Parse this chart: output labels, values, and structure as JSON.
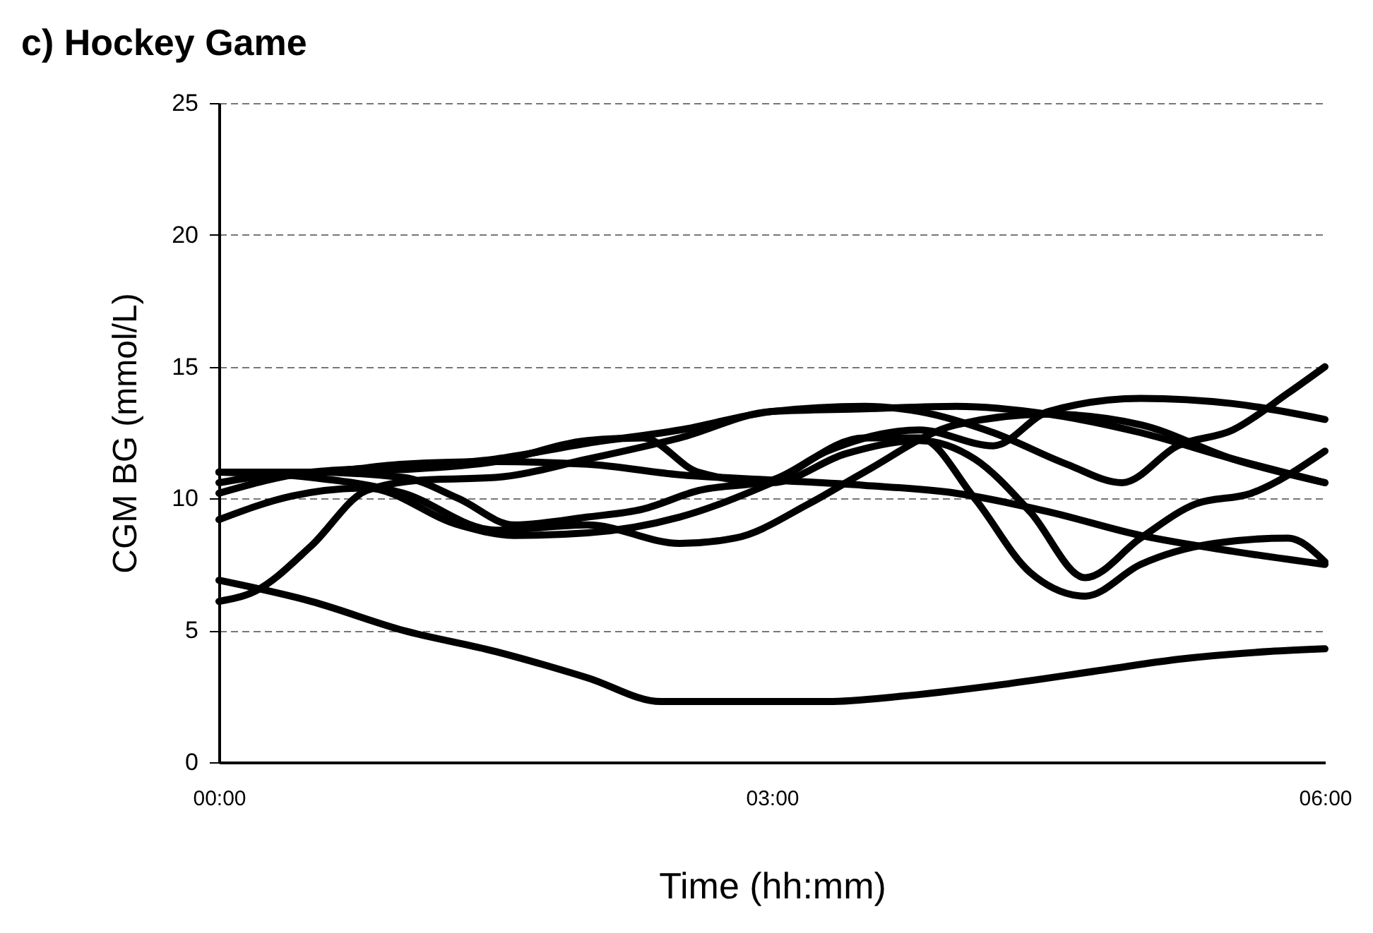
{
  "chart_data": {
    "type": "line",
    "title": "c) Hockey Game",
    "xlabel": "Time (hh:mm)",
    "ylabel": "CGM BG (mmol/L)",
    "xlim": [
      0,
      6
    ],
    "xticks": [
      {
        "value": 0,
        "label": "00:00"
      },
      {
        "value": 3,
        "label": "03:00"
      },
      {
        "value": 6,
        "label": "06:00"
      }
    ],
    "ylim": [
      0,
      25
    ],
    "yticks": [
      0,
      5,
      10,
      15,
      20,
      25
    ],
    "grid": "y",
    "series": [
      {
        "color": "#000000",
        "x": [
          0,
          0.5,
          1,
          1.5,
          2,
          2.4,
          3,
          3.3,
          3.7,
          4.2,
          4.8,
          5.2,
          5.7,
          6
        ],
        "values": [
          6.9,
          6.1,
          5.0,
          4.2,
          3.2,
          2.3,
          2.3,
          2.3,
          2.5,
          2.9,
          3.5,
          3.9,
          4.2,
          4.3
        ]
      },
      {
        "color": "#000000",
        "x": [
          0,
          0.2,
          0.5,
          0.8,
          1.1,
          1.5,
          2,
          2.5,
          3,
          3.5,
          4,
          4.5,
          5,
          5.5,
          6
        ],
        "values": [
          6.1,
          6.5,
          8.2,
          10.3,
          10.7,
          10.8,
          11.5,
          12.3,
          13.3,
          13.4,
          13.5,
          13.2,
          12.5,
          11.5,
          10.6
        ]
      },
      {
        "color": "#000000",
        "x": [
          0,
          0.5,
          1,
          1.5,
          2,
          2.5,
          3,
          3.5,
          4,
          4.5,
          5,
          5.5,
          6
        ],
        "values": [
          11.0,
          11.0,
          11.3,
          11.4,
          11.3,
          10.9,
          10.7,
          10.5,
          10.2,
          9.5,
          8.6,
          8.0,
          7.5
        ]
      },
      {
        "color": "#000000",
        "x": [
          0,
          0.5,
          1,
          1.3,
          1.6,
          2,
          2.3,
          2.6,
          3,
          3.3,
          3.8,
          4.2,
          4.5,
          5,
          5.5,
          6
        ],
        "values": [
          10.6,
          11.0,
          10.8,
          10.0,
          9.0,
          9.3,
          9.6,
          10.3,
          10.7,
          11.8,
          12.6,
          12.0,
          13.3,
          13.8,
          13.6,
          13.0
        ]
      },
      {
        "color": "#000000",
        "x": [
          0,
          0.5,
          1,
          1.5,
          2,
          2.3,
          2.6,
          3,
          3.4,
          3.8,
          4.1,
          4.4,
          4.7,
          5,
          5.3,
          5.6,
          6
        ],
        "values": [
          11.0,
          11.0,
          11.1,
          11.4,
          12.2,
          12.3,
          11.0,
          10.6,
          11.7,
          12.2,
          11.5,
          9.5,
          7.0,
          8.5,
          9.8,
          10.2,
          11.8
        ]
      },
      {
        "color": "#000000",
        "x": [
          0,
          0.5,
          1,
          1.5,
          2,
          2.5,
          3,
          3.5,
          3.8,
          4.2,
          4.6,
          4.9,
          5.2,
          5.5,
          5.8,
          6
        ],
        "values": [
          10.2,
          11.0,
          11.2,
          11.5,
          12.1,
          12.6,
          13.3,
          13.5,
          13.3,
          12.5,
          11.3,
          10.6,
          12.0,
          12.6,
          14.0,
          15.0
        ]
      },
      {
        "color": "#000000",
        "x": [
          0,
          0.4,
          0.8,
          1.3,
          1.6,
          2,
          2.5,
          3,
          3.5,
          3.8,
          4.1,
          4.4,
          4.7,
          5,
          5.4,
          5.8,
          6
        ],
        "values": [
          9.2,
          10.1,
          10.4,
          9.0,
          8.6,
          8.7,
          9.3,
          10.6,
          12.3,
          12.3,
          10.0,
          7.2,
          6.3,
          7.5,
          8.3,
          8.5,
          7.6
        ]
      },
      {
        "color": "#000000",
        "x": [
          0,
          0.5,
          1,
          1.5,
          2,
          2.5,
          2.8,
          3.2,
          3.5,
          4,
          4.5,
          5,
          5.5,
          6
        ],
        "values": [
          11.0,
          10.8,
          10.2,
          8.8,
          9.0,
          8.3,
          8.5,
          9.8,
          11.0,
          12.8,
          13.2,
          12.8,
          11.5,
          10.6
        ]
      }
    ]
  }
}
